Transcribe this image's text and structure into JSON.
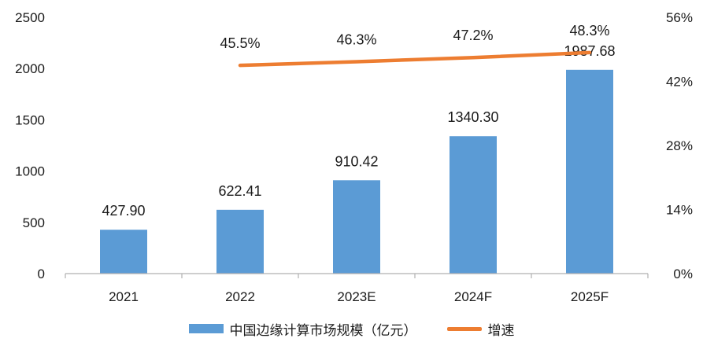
{
  "chart_data": {
    "type": "bar",
    "categories": [
      "2021",
      "2022",
      "2023E",
      "2024F",
      "2025F"
    ],
    "series": [
      {
        "name": "中国边缘计算市场规模（亿元）",
        "kind": "bar",
        "axis": "left",
        "color": "#5b9bd5",
        "values": [
          427.9,
          622.41,
          910.42,
          1340.3,
          1987.68
        ],
        "labels": [
          "427.90",
          "622.41",
          "910.42",
          "1340.30",
          "1987.68"
        ]
      },
      {
        "name": "增速",
        "kind": "line",
        "axis": "right",
        "color": "#ed7d31",
        "values": [
          null,
          45.5,
          46.3,
          47.2,
          48.3
        ],
        "labels": [
          "",
          "45.5%",
          "46.3%",
          "47.2%",
          "48.3%"
        ]
      }
    ],
    "y_left": {
      "ylim": [
        0,
        2500
      ],
      "ticks": [
        "0",
        "500",
        "1000",
        "1500",
        "2000",
        "2500"
      ]
    },
    "y_right": {
      "ylim": [
        0,
        56
      ],
      "ticks": [
        "0%",
        "14%",
        "28%",
        "42%",
        "56%"
      ]
    },
    "grid": false,
    "legend_position": "bottom"
  }
}
